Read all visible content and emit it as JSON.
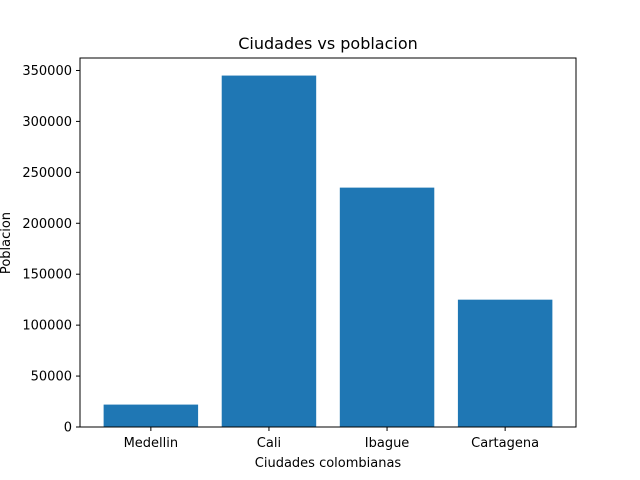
{
  "chart_data": {
    "type": "bar",
    "title": "Ciudades vs poblacion",
    "xlabel": "Ciudades colombianas",
    "ylabel": "Poblacion",
    "categories": [
      "Medellin",
      "Cali",
      "Ibague",
      "Cartagena"
    ],
    "values": [
      22000,
      345000,
      235000,
      125000
    ],
    "ylim": [
      0,
      362250
    ],
    "yticks": [
      0,
      50000,
      100000,
      150000,
      200000,
      250000,
      300000,
      350000
    ],
    "grid": false,
    "bar_color": "#1f77b4"
  }
}
